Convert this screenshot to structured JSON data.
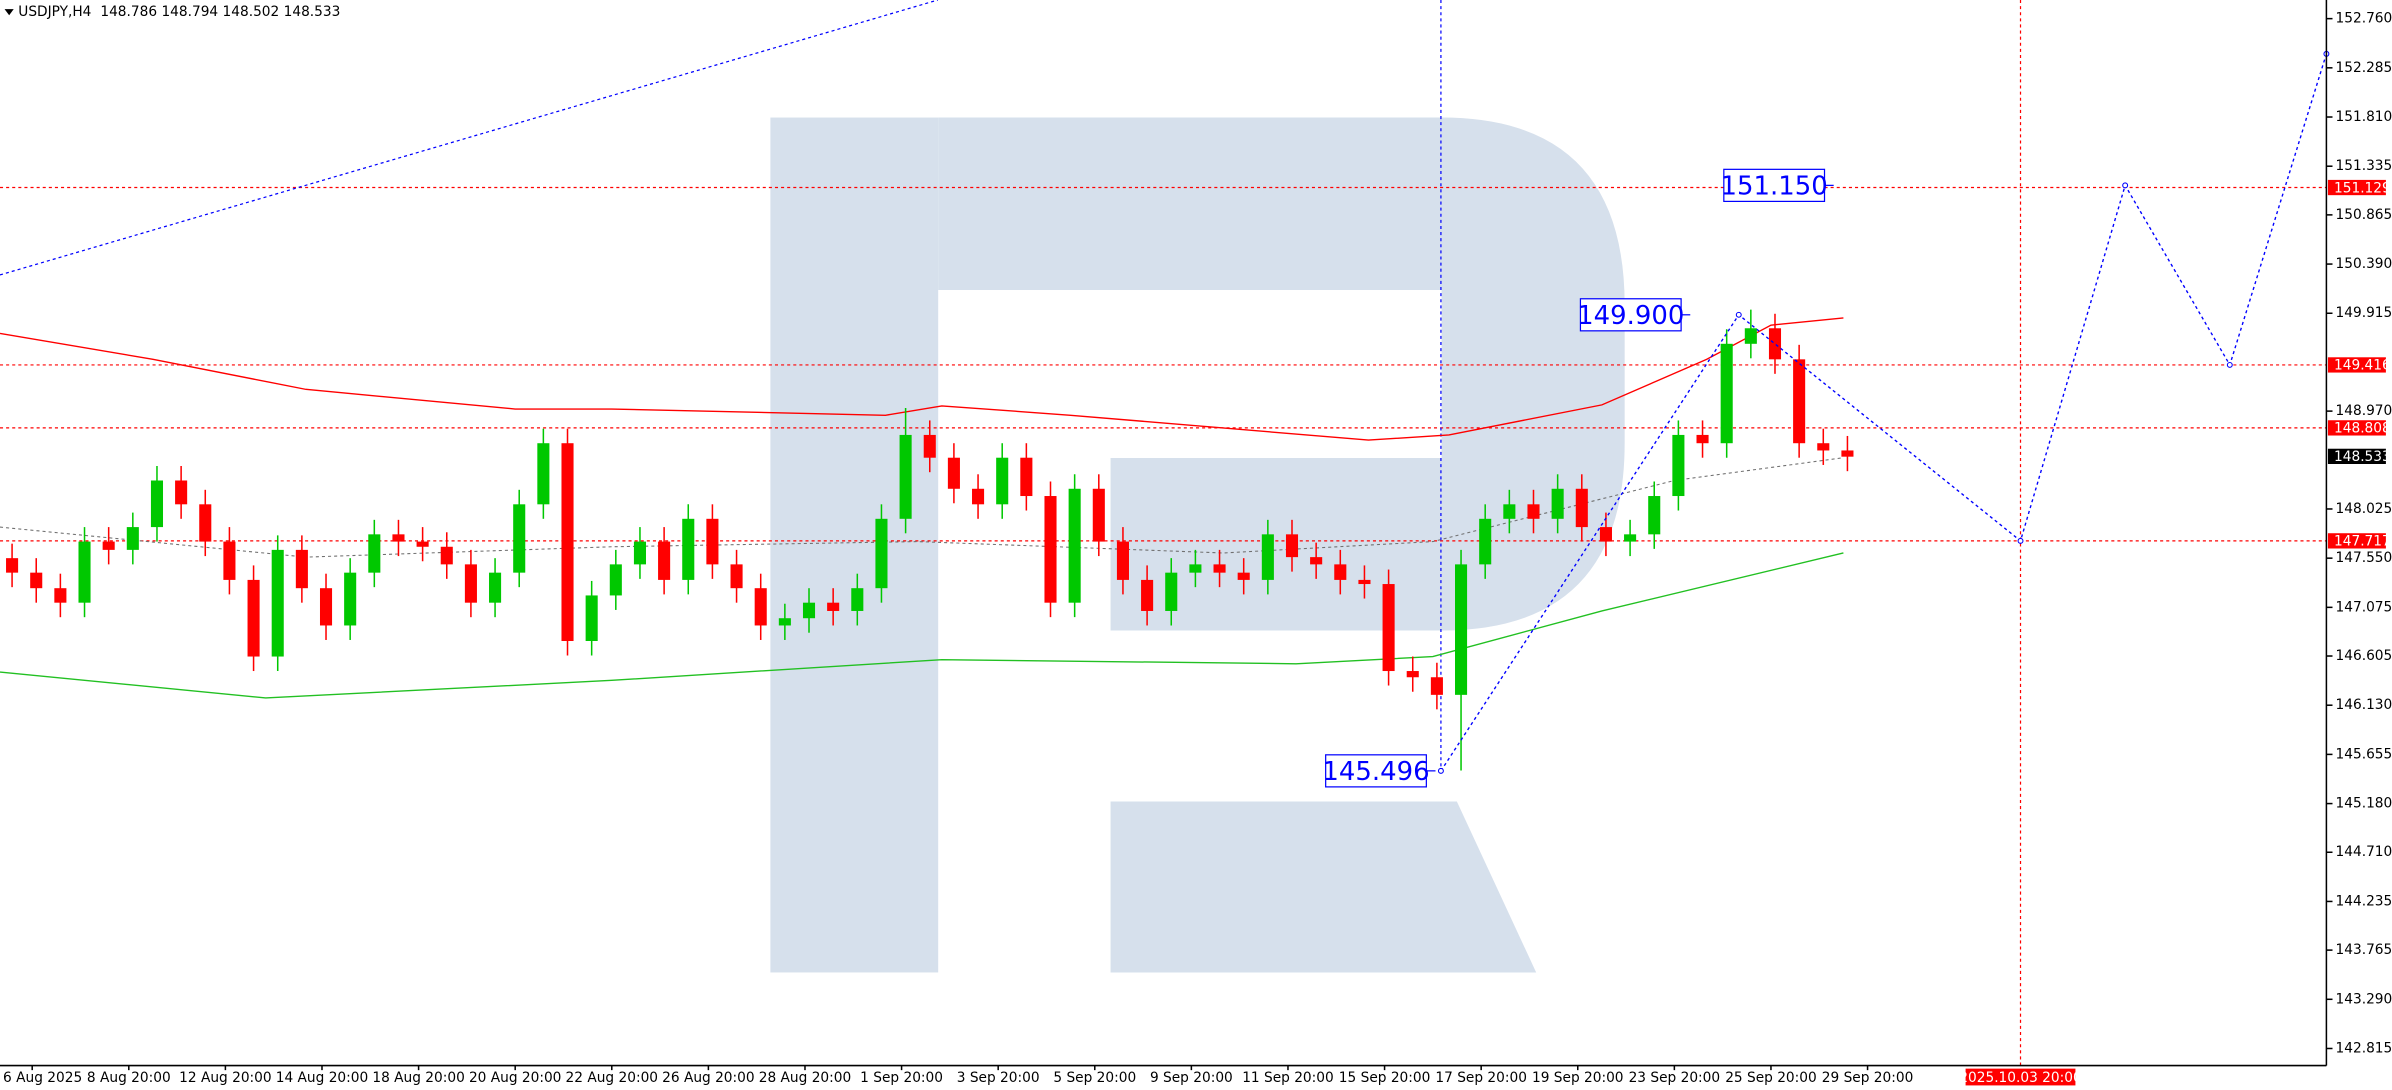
{
  "chart_data": {
    "type": "candlestick",
    "symbol": "USDJPY,H4",
    "header_ohlc": [
      148.786,
      148.794,
      148.502,
      148.533
    ],
    "up_color": "#00c800",
    "down_color": "#ff0000",
    "grid": false,
    "xlim": [
      0,
      289
    ],
    "ylim": [
      142.65,
      152.94
    ],
    "xticks": [
      {
        "value": 4,
        "label": "6 Aug 2025"
      },
      {
        "value": 16,
        "label": "8 Aug 20:00"
      },
      {
        "value": 28,
        "label": "12 Aug 20:00"
      },
      {
        "value": 40,
        "label": "14 Aug 20:00"
      },
      {
        "value": 52,
        "label": "18 Aug 20:00"
      },
      {
        "value": 64,
        "label": "20 Aug 20:00"
      },
      {
        "value": 76,
        "label": "22 Aug 20:00"
      },
      {
        "value": 88,
        "label": "26 Aug 20:00"
      },
      {
        "value": 100,
        "label": "28 Aug 20:00"
      },
      {
        "value": 112,
        "label": "1 Sep 20:00"
      },
      {
        "value": 124,
        "label": "3 Sep 20:00"
      },
      {
        "value": 136,
        "label": "5 Sep 20:00"
      },
      {
        "value": 148,
        "label": "9 Sep 20:00"
      },
      {
        "value": 160,
        "label": "11 Sep 20:00"
      },
      {
        "value": 172,
        "label": "15 Sep 20:00"
      },
      {
        "value": 184,
        "label": "17 Sep 20:00"
      },
      {
        "value": 196,
        "label": "19 Sep 20:00"
      },
      {
        "value": 208,
        "label": "23 Sep 20:00"
      },
      {
        "value": 220,
        "label": "25 Sep 20:00"
      },
      {
        "value": 232,
        "label": "29 Sep 20:00"
      }
    ],
    "yticks": [
      {
        "value": 152.76,
        "label": "152.760"
      },
      152.285,
      {
        "value": 151.81,
        "label": "151.810"
      },
      151.335,
      150.865,
      {
        "value": 150.39,
        "label": "150.390"
      },
      149.915,
      {
        "value": 148.97,
        "label": "148.970"
      },
      148.025,
      {
        "value": 147.55,
        "label": "147.550"
      },
      147.075,
      146.605,
      {
        "value": 146.13,
        "label": "146.130"
      },
      145.655,
      {
        "value": 145.18,
        "label": "145.180"
      },
      {
        "value": 144.71,
        "label": "144.710"
      },
      144.235,
      143.765,
      {
        "value": 143.29,
        "label": "143.290"
      },
      142.815
    ],
    "x": [
      1.5,
      4.5,
      7.5,
      10.5,
      13.5,
      16.5,
      19.5,
      22.5,
      25.5,
      28.5,
      31.5,
      34.5,
      37.5,
      40.5,
      43.5,
      46.5,
      49.5,
      52.5,
      55.5,
      58.5,
      61.5,
      64.5,
      67.5,
      70.5,
      73.5,
      76.5,
      79.5,
      82.5,
      85.5,
      88.5,
      91.5,
      94.5,
      97.5,
      100.5,
      103.5,
      106.5,
      109.5,
      112.5,
      115.5,
      118.5,
      121.5,
      124.5,
      127.5,
      130.5,
      133.5,
      136.5,
      139.5,
      142.5,
      145.5,
      148.5,
      151.5,
      154.5,
      157.5,
      160.5,
      163.5,
      166.5,
      169.5,
      172.5,
      175.5,
      178.5,
      181.5,
      184.5,
      187.5,
      190.5,
      193.5,
      196.5,
      199.5,
      202.5,
      205.5,
      208.5,
      211.5,
      214.5,
      217.5,
      220.5,
      223.5,
      226.5,
      229.5
    ],
    "open": [
      147.55,
      147.41,
      147.26,
      147.12,
      147.71,
      147.63,
      147.85,
      148.3,
      148.07,
      147.71,
      147.34,
      146.6,
      147.63,
      147.26,
      146.9,
      147.41,
      147.78,
      147.71,
      147.66,
      147.49,
      147.12,
      147.41,
      148.07,
      148.66,
      146.75,
      147.19,
      147.49,
      147.71,
      147.34,
      147.93,
      147.49,
      147.26,
      146.9,
      146.97,
      147.12,
      147.04,
      147.26,
      147.93,
      148.74,
      148.52,
      148.22,
      148.07,
      148.52,
      148.15,
      147.12,
      148.22,
      147.71,
      147.34,
      147.04,
      147.41,
      147.49,
      147.41,
      147.34,
      147.78,
      147.56,
      147.49,
      147.34,
      147.3,
      146.46,
      146.4,
      146.23,
      147.49,
      147.93,
      148.07,
      147.93,
      148.22,
      147.85,
      147.71,
      147.78,
      148.15,
      148.74,
      148.66,
      149.62,
      149.77,
      149.47,
      148.66,
      148.59
    ],
    "high": [
      147.69,
      147.55,
      147.4,
      147.85,
      147.85,
      147.99,
      148.44,
      148.44,
      148.21,
      147.85,
      147.48,
      147.77,
      147.77,
      147.4,
      147.55,
      147.92,
      147.92,
      147.85,
      147.8,
      147.63,
      147.55,
      148.21,
      148.8,
      148.8,
      147.33,
      147.63,
      147.85,
      147.85,
      148.07,
      148.07,
      147.63,
      147.4,
      147.11,
      147.26,
      147.26,
      147.4,
      148.07,
      149.0,
      148.88,
      148.66,
      148.36,
      148.66,
      148.66,
      148.29,
      148.36,
      148.36,
      147.85,
      147.48,
      147.55,
      147.63,
      147.63,
      147.55,
      147.92,
      147.92,
      147.7,
      147.63,
      147.48,
      147.44,
      146.6,
      146.54,
      147.63,
      148.07,
      148.21,
      148.21,
      148.36,
      148.36,
      147.99,
      147.92,
      148.29,
      148.88,
      148.88,
      149.76,
      149.95,
      149.91,
      149.61,
      148.8,
      148.73
    ],
    "low": [
      147.27,
      147.12,
      146.98,
      146.98,
      147.49,
      147.49,
      147.71,
      147.93,
      147.57,
      147.2,
      146.46,
      146.46,
      147.12,
      146.76,
      146.76,
      147.27,
      147.57,
      147.52,
      147.35,
      146.98,
      146.98,
      147.27,
      147.93,
      146.61,
      146.61,
      147.05,
      147.35,
      147.2,
      147.2,
      147.35,
      147.12,
      146.76,
      146.76,
      146.83,
      146.9,
      146.9,
      147.12,
      147.79,
      148.38,
      148.08,
      147.93,
      147.93,
      148.01,
      146.98,
      146.98,
      147.57,
      147.2,
      146.9,
      146.9,
      147.27,
      147.27,
      147.2,
      147.2,
      147.42,
      147.35,
      147.2,
      147.16,
      146.32,
      146.26,
      146.09,
      145.5,
      147.35,
      147.79,
      147.79,
      147.79,
      147.71,
      147.57,
      147.57,
      147.64,
      148.01,
      148.52,
      148.52,
      149.48,
      149.33,
      148.52,
      148.45,
      148.39
    ],
    "close": [
      147.41,
      147.26,
      147.12,
      147.71,
      147.63,
      147.85,
      148.3,
      148.07,
      147.71,
      147.34,
      146.6,
      147.63,
      147.26,
      146.9,
      147.41,
      147.78,
      147.71,
      147.66,
      147.49,
      147.12,
      147.41,
      148.07,
      148.66,
      146.75,
      147.19,
      147.49,
      147.71,
      147.34,
      147.93,
      147.49,
      147.26,
      146.9,
      146.97,
      147.12,
      147.04,
      147.26,
      147.93,
      148.74,
      148.52,
      148.22,
      148.07,
      148.52,
      148.15,
      147.12,
      148.22,
      147.71,
      147.34,
      147.04,
      147.41,
      147.49,
      147.41,
      147.34,
      147.78,
      147.56,
      147.49,
      147.34,
      147.3,
      146.46,
      146.4,
      146.23,
      147.49,
      147.93,
      148.07,
      147.93,
      148.22,
      147.85,
      147.71,
      147.78,
      148.15,
      148.74,
      148.66,
      149.62,
      149.77,
      149.47,
      148.66,
      148.59,
      148.53
    ],
    "overlays": [
      {
        "color": "#ff0000",
        "dash": false,
        "x": [
          0,
          19,
          38,
          64,
          76,
          110,
          117,
          133,
          170,
          180,
          199,
          212,
          220,
          229
        ],
        "values": [
          149.72,
          149.47,
          149.18,
          148.99,
          148.99,
          148.93,
          149.02,
          148.93,
          148.69,
          148.74,
          149.03,
          149.47,
          149.8,
          149.87
        ]
      },
      {
        "color": "#22c022",
        "dash": false,
        "x": [
          0,
          33,
          76,
          117,
          161,
          178,
          199,
          229
        ],
        "values": [
          146.45,
          146.2,
          146.37,
          146.57,
          146.53,
          146.6,
          147.04,
          147.6
        ]
      },
      {
        "color": "#707070",
        "dash": true,
        "x": [
          0,
          38,
          76,
          114,
          152,
          178,
          208,
          229
        ],
        "values": [
          147.85,
          147.56,
          147.66,
          147.71,
          147.6,
          147.71,
          148.3,
          148.52
        ]
      }
    ],
    "price_levels": [
      {
        "value": 151.129,
        "color": "#ff0000"
      },
      {
        "value": 149.416,
        "color": "#ff0000"
      },
      {
        "value": 148.808,
        "color": "#ff0000"
      },
      {
        "value": 147.717,
        "color": "#ff0000"
      }
    ],
    "current_price": {
      "value": 148.533,
      "color": "#000000"
    },
    "cursor_time": {
      "value": 251,
      "label": "2025.10.03 20:00",
      "color": "#ff0000"
    },
    "vertical_line_x": 179,
    "forecast": {
      "color": "#0000ff",
      "x": [
        179,
        216,
        251,
        264,
        277,
        289
      ],
      "values": [
        145.496,
        149.9,
        147.717,
        151.15,
        149.416,
        152.42
      ],
      "value_labels": [
        "145.496",
        "149.900",
        null,
        "151.150",
        null,
        null
      ]
    },
    "trendline": {
      "color": "#0000ff",
      "x": [
        0,
        116.5
      ],
      "values": [
        150.285,
        152.94
      ]
    }
  }
}
